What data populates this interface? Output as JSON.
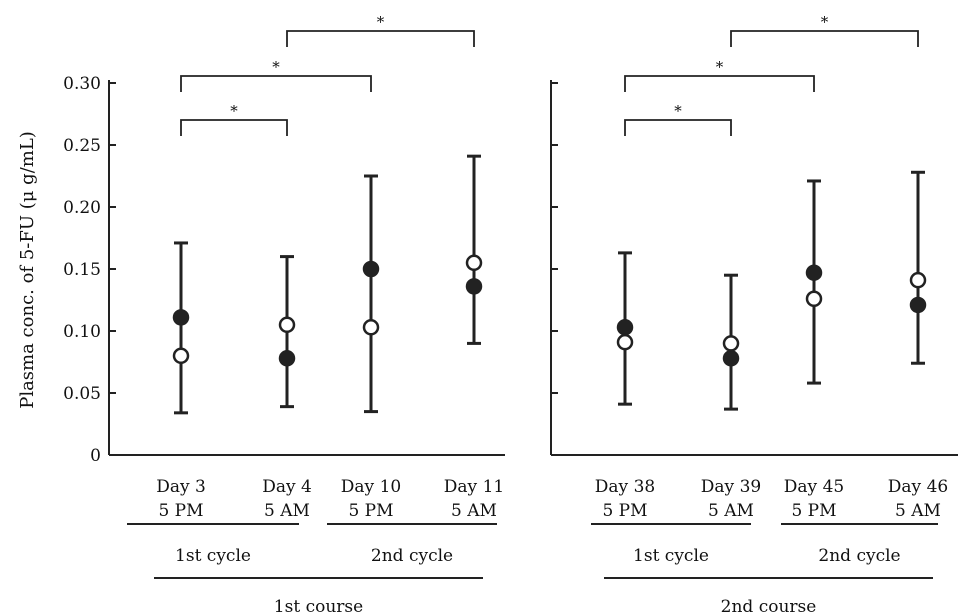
{
  "chart_data": {
    "type": "scatter",
    "ylabel": "Plasma conc. of 5-FU (μ g/mL)",
    "yticks": [
      "0",
      "0.05",
      "0.10",
      "0.15",
      "0.20",
      "0.25",
      "0.30"
    ],
    "ylim": [
      0,
      0.3
    ],
    "grid": false,
    "series_styles": [
      {
        "marker": "filled-circle",
        "color": "#222222"
      },
      {
        "marker": "open-circle",
        "color": "#222222"
      }
    ],
    "panels": [
      {
        "course_label": "1st course",
        "cycles": [
          "1st cycle",
          "2nd cycle"
        ],
        "categories": [
          {
            "line1": "Day 3",
            "line2": "5 PM"
          },
          {
            "line1": "Day 4",
            "line2": "5 AM"
          },
          {
            "line1": "Day 10",
            "line2": "5 PM"
          },
          {
            "line1": "Day 11",
            "line2": "5 AM"
          }
        ],
        "filled": [
          0.111,
          0.078,
          0.15,
          0.136
        ],
        "open": [
          0.08,
          0.105,
          0.103,
          0.155
        ],
        "error_upper": [
          0.171,
          0.16,
          0.225,
          0.241
        ],
        "error_lower": [
          0.034,
          0.039,
          0.035,
          0.09
        ],
        "significance": [
          {
            "from": 0,
            "to": 1,
            "label": "*"
          },
          {
            "from": 0,
            "to": 2,
            "label": "*"
          },
          {
            "from": 1,
            "to": 3,
            "label": "*"
          }
        ]
      },
      {
        "course_label": "2nd course",
        "cycles": [
          "1st cycle",
          "2nd cycle"
        ],
        "categories": [
          {
            "line1": "Day 38",
            "line2": "5 PM"
          },
          {
            "line1": "Day 39",
            "line2": "5 AM"
          },
          {
            "line1": "Day 45",
            "line2": "5 PM"
          },
          {
            "line1": "Day 46",
            "line2": "5 AM"
          }
        ],
        "filled": [
          0.103,
          0.078,
          0.147,
          0.121
        ],
        "open": [
          0.091,
          0.09,
          0.126,
          0.141
        ],
        "error_upper": [
          0.163,
          0.145,
          0.221,
          0.228
        ],
        "error_lower": [
          0.041,
          0.037,
          0.058,
          0.074
        ],
        "significance": [
          {
            "from": 0,
            "to": 1,
            "label": "*"
          },
          {
            "from": 0,
            "to": 2,
            "label": "*"
          },
          {
            "from": 1,
            "to": 3,
            "label": "*"
          }
        ]
      }
    ]
  }
}
